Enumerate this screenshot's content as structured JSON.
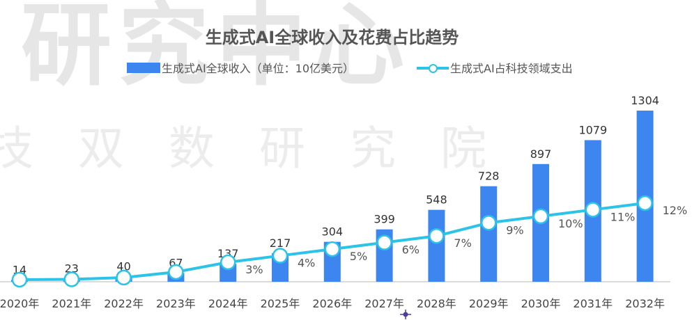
{
  "watermark": {
    "top": "研究中心",
    "middle": "技双数研究院"
  },
  "chart_data": {
    "type": "bar",
    "title": "生成式AI全球收入及花费占比趋势",
    "categories": [
      "2020年",
      "2021年",
      "2022年",
      "2023年",
      "2024年",
      "2025年",
      "2026年",
      "2027年",
      "2028年",
      "2029年",
      "2030年",
      "2031年",
      "2032年"
    ],
    "series": [
      {
        "name": "生成式AI全球收入（单位：10亿美元）",
        "type": "bar",
        "color": "#3d86f0",
        "values": [
          14,
          23,
          40,
          67,
          137,
          217,
          304,
          399,
          548,
          728,
          897,
          1079,
          1304
        ],
        "labels": [
          "14",
          "23",
          "40",
          "67",
          "137",
          "217",
          "304",
          "399",
          "548",
          "728",
          "897",
          "1079",
          "1304"
        ]
      },
      {
        "name": "生成式AI占科技领域支出",
        "type": "line",
        "color": "#2bc3e8",
        "values": [
          0.1,
          0.15,
          0.4,
          1.2,
          3,
          4,
          5,
          6,
          7,
          9,
          10,
          11,
          12
        ],
        "labels": [
          "",
          "",
          "",
          "",
          "3%",
          "4%",
          "5%",
          "6%",
          "7%",
          "9%",
          "10%",
          "11%",
          "12%"
        ]
      }
    ],
    "legend_position": "top",
    "grid": false
  }
}
